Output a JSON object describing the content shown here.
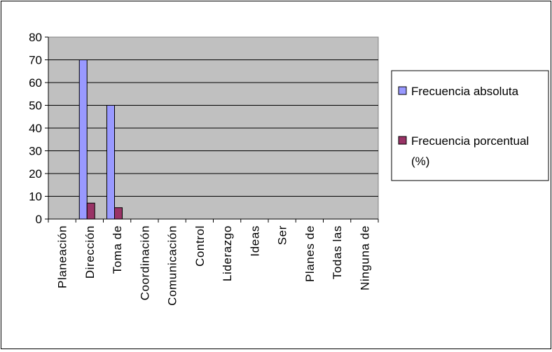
{
  "chart_data": {
    "type": "bar",
    "title": "",
    "xlabel": "",
    "ylabel": "",
    "categories": [
      "Planeación",
      "Dirección",
      "Toma de",
      "Coordinación",
      "Comunicación",
      "Control",
      "Liderazgo",
      "Ideas",
      "Ser",
      "Planes de",
      "Todas las",
      "Ninguna de"
    ],
    "series": [
      {
        "name": "Frecuencia absoluta",
        "values": [
          0,
          70,
          50,
          0,
          0,
          0,
          0,
          0,
          0,
          0,
          0,
          0
        ],
        "color": "#9999FF"
      },
      {
        "name": "Frecuencia porcentual (%)",
        "name_lines": [
          "Frecuencia porcentual",
          "(%)"
        ],
        "values": [
          0,
          7,
          5,
          0,
          0,
          0,
          0,
          0,
          0,
          0,
          0,
          0
        ],
        "color": "#993366"
      }
    ],
    "ylim": [
      0,
      80
    ],
    "yticks": [
      0,
      10,
      20,
      30,
      40,
      50,
      60,
      70,
      80
    ],
    "grid": true,
    "plot_background": "#C0C0C0",
    "legend_position": "right"
  }
}
